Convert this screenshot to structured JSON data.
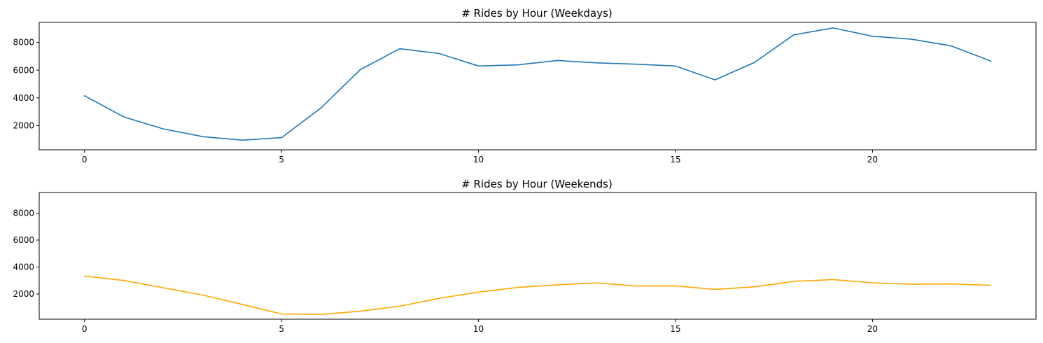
{
  "chart_data": [
    {
      "type": "line",
      "title": "# Rides by Hour (Weekdays)",
      "xlabel": "",
      "ylabel": "",
      "x": [
        0,
        1,
        2,
        3,
        4,
        5,
        6,
        7,
        8,
        9,
        10,
        11,
        12,
        13,
        14,
        15,
        16,
        17,
        18,
        19,
        20,
        21,
        22,
        23
      ],
      "series": [
        {
          "color": "#1f77b4",
          "values": [
            4150,
            2620,
            1760,
            1200,
            950,
            1130,
            3270,
            6040,
            7550,
            7200,
            6300,
            6380,
            6700,
            6530,
            6430,
            6300,
            5300,
            6550,
            8550,
            9050,
            8450,
            8230,
            7750,
            6660
          ]
        }
      ],
      "xlim": [
        -1.15,
        24.15
      ],
      "ylim": [
        250,
        9450
      ],
      "xticks": [
        0,
        5,
        10,
        15,
        20
      ],
      "yticks": [
        2000,
        4000,
        6000,
        8000
      ],
      "grid": false,
      "legend": "none"
    },
    {
      "type": "line",
      "title": "# Rides by Hour (Weekends)",
      "xlabel": "",
      "ylabel": "",
      "x": [
        0,
        1,
        2,
        3,
        4,
        5,
        6,
        7,
        8,
        9,
        10,
        11,
        12,
        13,
        14,
        15,
        16,
        17,
        18,
        19,
        20,
        21,
        22,
        23
      ],
      "series": [
        {
          "color": "#ffa500",
          "values": [
            3330,
            3000,
            2460,
            1920,
            1230,
            520,
            490,
            720,
            1090,
            1680,
            2140,
            2490,
            2680,
            2820,
            2590,
            2600,
            2340,
            2530,
            2940,
            3070,
            2830,
            2720,
            2740,
            2650
          ]
        }
      ],
      "xlim": [
        -1.15,
        24.15
      ],
      "ylim": [
        130,
        9530
      ],
      "xticks": [
        0,
        5,
        10,
        15,
        20
      ],
      "yticks": [
        2000,
        4000,
        6000,
        8000
      ],
      "grid": false,
      "legend": "none"
    }
  ]
}
